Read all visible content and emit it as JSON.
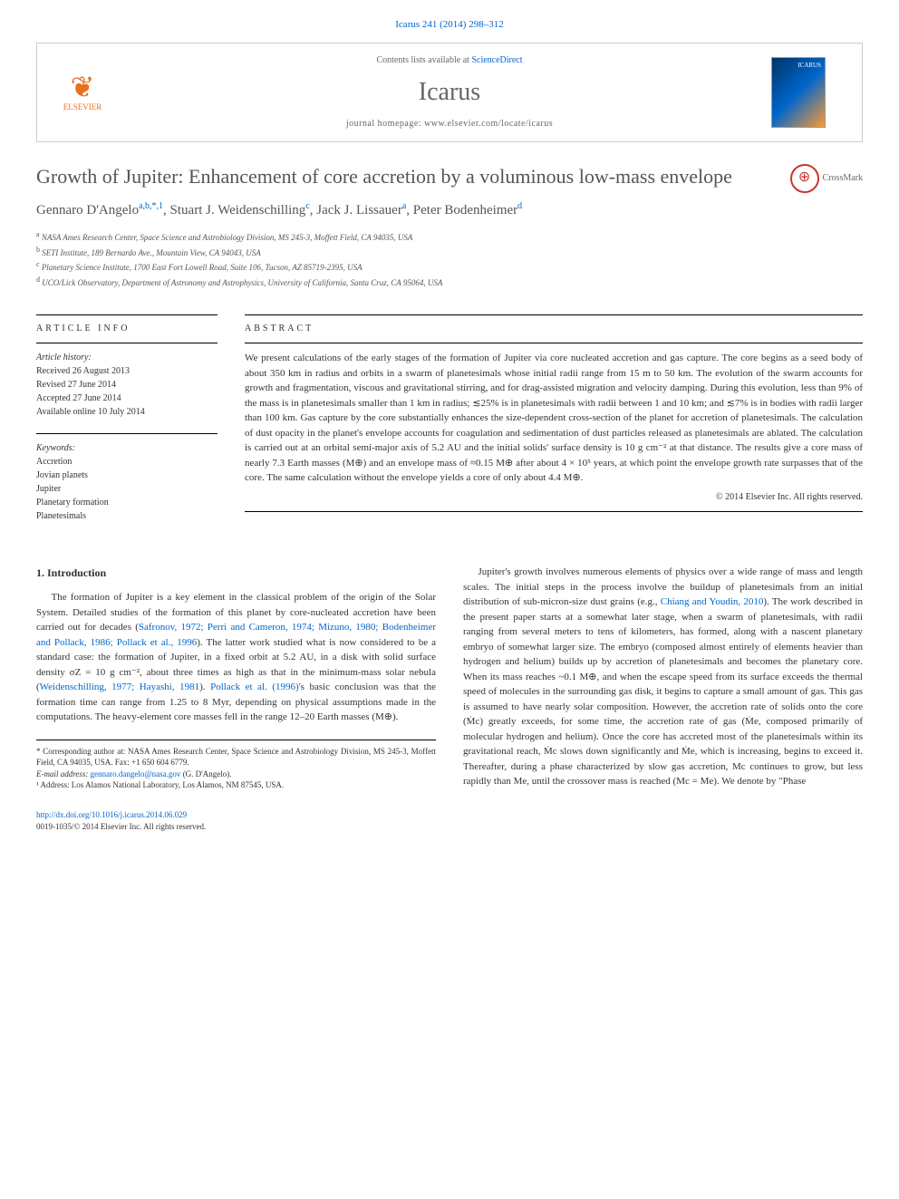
{
  "citation": "Icarus 241 (2014) 298–312",
  "header": {
    "contents_prefix": "Contents lists available at ",
    "contents_link": "ScienceDirect",
    "journal_name": "Icarus",
    "homepage_prefix": "journal homepage: ",
    "homepage_url": "www.elsevier.com/locate/icarus",
    "elsevier_label": "ELSEVIER",
    "cover_label": "ICARUS"
  },
  "title": "Growth of Jupiter: Enhancement of core accretion by a voluminous low-mass envelope",
  "crossmark": "CrossMark",
  "authors": [
    {
      "name": "Gennaro D'Angelo",
      "sup": "a,b,*,1"
    },
    {
      "name": "Stuart J. Weidenschilling",
      "sup": "c"
    },
    {
      "name": "Jack J. Lissauer",
      "sup": "a"
    },
    {
      "name": "Peter Bodenheimer",
      "sup": "d"
    }
  ],
  "affiliations": [
    {
      "key": "a",
      "text": "NASA Ames Research Center, Space Science and Astrobiology Division, MS 245-3, Moffett Field, CA 94035, USA"
    },
    {
      "key": "b",
      "text": "SETI Institute, 189 Bernardo Ave., Mountain View, CA 94043, USA"
    },
    {
      "key": "c",
      "text": "Planetary Science Institute, 1700 East Fort Lowell Road, Suite 106, Tucson, AZ 85719-2395, USA"
    },
    {
      "key": "d",
      "text": "UCO/Lick Observatory, Department of Astronomy and Astrophysics, University of California, Santa Cruz, CA 95064, USA"
    }
  ],
  "article_info": {
    "label": "ARTICLE INFO",
    "history_title": "Article history:",
    "history": [
      "Received 26 August 2013",
      "Revised 27 June 2014",
      "Accepted 27 June 2014",
      "Available online 10 July 2014"
    ],
    "keywords_title": "Keywords:",
    "keywords": [
      "Accretion",
      "Jovian planets",
      "Jupiter",
      "Planetary formation",
      "Planetesimals"
    ]
  },
  "abstract": {
    "label": "ABSTRACT",
    "text": "We present calculations of the early stages of the formation of Jupiter via core nucleated accretion and gas capture. The core begins as a seed body of about 350 km in radius and orbits in a swarm of planetesimals whose initial radii range from 15 m to 50 km. The evolution of the swarm accounts for growth and fragmentation, viscous and gravitational stirring, and for drag-assisted migration and velocity damping. During this evolution, less than 9% of the mass is in planetesimals smaller than 1 km in radius; ≲25% is in planetesimals with radii between 1 and 10 km; and ≲7% is in bodies with radii larger than 100 km. Gas capture by the core substantially enhances the size-dependent cross-section of the planet for accretion of planetesimals. The calculation of dust opacity in the planet's envelope accounts for coagulation and sedimentation of dust particles released as planetesimals are ablated. The calculation is carried out at an orbital semi-major axis of 5.2 AU and the initial solids' surface density is 10 g cm⁻² at that distance. The results give a core mass of nearly 7.3 Earth masses (M⊕) and an envelope mass of ≈0.15 M⊕ after about 4 × 10⁵ years, at which point the envelope growth rate surpasses that of the core. The same calculation without the envelope yields a core of only about 4.4 M⊕.",
    "copyright": "© 2014 Elsevier Inc. All rights reserved."
  },
  "body": {
    "section_heading": "1. Introduction",
    "col1_p1_a": "The formation of Jupiter is a key element in the classical problem of the origin of the Solar System. Detailed studies of the formation of this planet by core-nucleated accretion have been carried out for decades (",
    "col1_p1_ref1": "Safronov, 1972; Perri and Cameron, 1974; Mizuno, 1980; Bodenheimer and Pollack, 1986; Pollack et al., 1996",
    "col1_p1_b": "). The latter work studied what is now considered to be a standard case: the formation of Jupiter, in a fixed orbit at 5.2 AU, in a disk with solid surface density σZ = 10 g cm⁻², about three times as high as that in the minimum-mass solar nebula (",
    "col1_p1_ref2": "Weidenschilling, 1977; Hayashi, 1981",
    "col1_p1_c": "). ",
    "col1_p1_ref3": "Pollack et al. (1996)",
    "col1_p1_d": "'s basic conclusion was that the formation time can range from 1.25 to 8 Myr, depending on physical assumptions made in the computations. The heavy-element core masses fell in the range 12–20 Earth masses (M⊕).",
    "col2_p1_a": "Jupiter's growth involves numerous elements of physics over a wide range of mass and length scales. The initial steps in the process involve the buildup of planetesimals from an initial distribution of sub-micron-size dust grains (e.g., ",
    "col2_p1_ref1": "Chiang and Youdin, 2010",
    "col2_p1_b": "). The work described in the present paper starts at a somewhat later stage, when a swarm of planetesimals, with radii ranging from several meters to tens of kilometers, has formed, along with a nascent planetary embryo of somewhat larger size. The embryo (composed almost entirely of elements heavier than hydrogen and helium) builds up by accretion of planetesimals and becomes the planetary core. When its mass reaches ~0.1 M⊕, and when the escape speed from its surface exceeds the thermal speed of molecules in the surrounding gas disk, it begins to capture a small amount of gas. This gas is assumed to have nearly solar composition. However, the accretion rate of solids onto the core (Ṁc) greatly exceeds, for some time, the accretion rate of gas (Ṁe, composed primarily of molecular hydrogen and helium). Once the core has accreted most of the planetesimals within its gravitational reach, Ṁc slows down significantly and Ṁe, which is increasing, begins to exceed it. Thereafter, during a phase characterized by slow gas accretion, Mc continues to grow, but less rapidly than Me, until the crossover mass is reached (Mc = Me). We denote by \"Phase"
  },
  "footnotes": {
    "corr": "* Corresponding author at: NASA Ames Research Center, Space Science and Astrobiology Division, MS 245-3, Moffett Field, CA 94035, USA. Fax: +1 650 604 6779.",
    "email_label": "E-mail address: ",
    "email": "gennaro.dangelo@nasa.gov",
    "email_suffix": " (G. D'Angelo).",
    "addr1": "¹ Address: Los Alamos National Laboratory, Los Alamos, NM 87545, USA."
  },
  "footer": {
    "doi": "http://dx.doi.org/10.1016/j.icarus.2014.06.029",
    "issn_copyright": "0019-1035/© 2014 Elsevier Inc. All rights reserved."
  },
  "colors": {
    "link": "#0066cc",
    "elsevier_orange": "#e9711c",
    "text": "#333333",
    "heading_gray": "#555555"
  }
}
